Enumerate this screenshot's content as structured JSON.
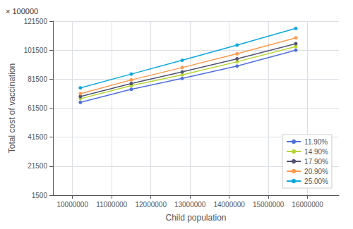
{
  "chart_data": {
    "type": "line",
    "x": [
      10200000,
      11500000,
      12800000,
      14200000,
      15700000
    ],
    "series": [
      {
        "name": "11.90%",
        "values": [
          65500,
          74500,
          82000,
          90500,
          101500
        ]
      },
      {
        "name": "14.90%",
        "values": [
          68000,
          77000,
          84500,
          93500,
          104000
        ]
      },
      {
        "name": "17.90%",
        "values": [
          69500,
          78500,
          86500,
          95500,
          106000
        ]
      },
      {
        "name": "20.90%",
        "values": [
          71500,
          81000,
          89500,
          99000,
          110000
        ]
      },
      {
        "name": "25.00%",
        "values": [
          75500,
          85000,
          94500,
          105000,
          116500
        ]
      }
    ],
    "xlabel": "Child population",
    "ylabel": "Total cost of vaccination",
    "annotation": "× 100000",
    "xlim": [
      9500000,
      16800000
    ],
    "ylim": [
      1500,
      121500
    ],
    "xticks": [
      10000000,
      11000000,
      12000000,
      13000000,
      14000000,
      15000000,
      16000000
    ],
    "yticks": [
      1500,
      21500,
      41500,
      61500,
      81500,
      101500,
      121500
    ],
    "grid": true,
    "legend": "lower right",
    "marker": "circle"
  }
}
